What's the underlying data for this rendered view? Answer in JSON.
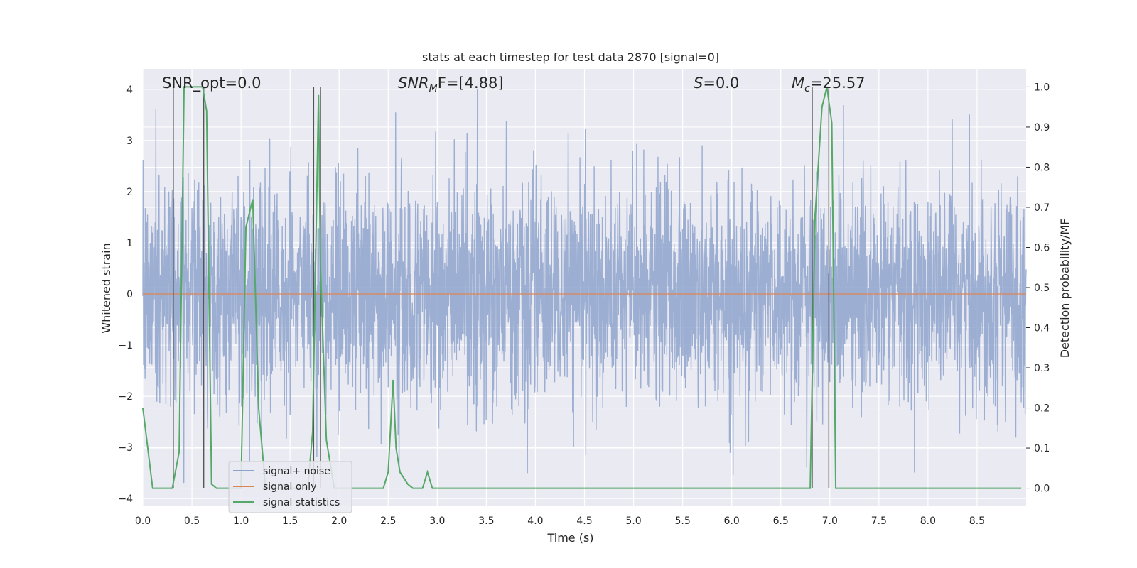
{
  "chart_data": {
    "type": "line",
    "title": "stats at each timestep for test data 2870 [signal=0]",
    "xlabel": "Time (s)",
    "ylabel": "Whitened strain",
    "y2label": "Detection probability/MF",
    "xlim": [
      0.0,
      9.0
    ],
    "ylim": [
      -4.15,
      4.4
    ],
    "y2lim": [
      -0.045,
      1.045
    ],
    "xticks": [
      "0.0",
      "0.5",
      "1.0",
      "1.5",
      "2.0",
      "2.5",
      "3.0",
      "3.5",
      "4.0",
      "4.5",
      "5.0",
      "5.5",
      "6.0",
      "6.5",
      "7.0",
      "7.5",
      "8.0",
      "8.5"
    ],
    "yticks": [
      "−4",
      "−3",
      "−2",
      "−1",
      "0",
      "1",
      "2",
      "3",
      "4"
    ],
    "y2ticks": [
      "0.0",
      "0.1",
      "0.2",
      "0.3",
      "0.4",
      "0.5",
      "0.6",
      "0.7",
      "0.8",
      "0.9",
      "1.0"
    ],
    "grid": true,
    "legend_position": "lower-left",
    "annotations": {
      "snr_opt": "SNR_opt=0.0",
      "snr_mf_main": "SNR",
      "snr_mf_sub": "M",
      "snr_mf_rest": "F=[4.88]",
      "s_main": "S",
      "s_rest": "=0.0",
      "mc_main": "M",
      "mc_sub": "c",
      "mc_rest": "=25.57"
    },
    "series": [
      {
        "name": "signal+ noise",
        "color": "#8ea3cc",
        "description_values": "whitened noise, roughly N(0,1) between about -3.7 and 4.0"
      },
      {
        "name": "signal only",
        "color": "#dd8452",
        "values_constant": 0.0
      },
      {
        "name": "signal statistics",
        "color": "#55a868",
        "axis": "right",
        "x": [
          0.0,
          0.05,
          0.1,
          0.2,
          0.25,
          0.3,
          0.37,
          0.42,
          0.5,
          0.55,
          0.61,
          0.65,
          0.7,
          0.75,
          0.8,
          0.85,
          0.9,
          0.95,
          1.0,
          1.05,
          1.12,
          1.18,
          1.25,
          1.3,
          1.4,
          1.5,
          1.6,
          1.68,
          1.73,
          1.79,
          1.81,
          1.87,
          1.95,
          2.05,
          2.15,
          2.25,
          2.35,
          2.45,
          2.5,
          2.55,
          2.58,
          2.62,
          2.7,
          2.75,
          2.8,
          2.85,
          2.9,
          2.95,
          3.0,
          3.05,
          3.5,
          4.0,
          4.5,
          5.0,
          5.5,
          6.0,
          6.5,
          6.8,
          6.85,
          6.92,
          6.97,
          7.02,
          7.06,
          7.1,
          7.5,
          8.0,
          8.5,
          8.95
        ],
        "values": [
          0.2,
          0.1,
          0.0,
          0.0,
          0.0,
          0.0,
          0.09,
          1.0,
          1.0,
          1.0,
          1.0,
          0.94,
          0.01,
          0.0,
          0.0,
          0.0,
          0.0,
          0.0,
          0.0,
          0.65,
          0.72,
          0.2,
          0.0,
          0.0,
          0.0,
          0.0,
          0.0,
          0.0,
          0.14,
          0.98,
          0.55,
          0.12,
          0.0,
          0.0,
          0.0,
          0.0,
          0.0,
          0.0,
          0.04,
          0.27,
          0.1,
          0.04,
          0.01,
          0.0,
          0.0,
          0.0,
          0.04,
          0.0,
          0.0,
          0.0,
          0.0,
          0.0,
          0.0,
          0.0,
          0.0,
          0.0,
          0.0,
          0.0,
          0.68,
          0.95,
          1.0,
          0.91,
          0.0,
          0.0,
          0.0,
          0.0,
          0.0,
          0.0
        ]
      }
    ],
    "vertical_markers_x": [
      0.31,
      0.62,
      1.74,
      1.81,
      6.82,
      6.99
    ]
  }
}
